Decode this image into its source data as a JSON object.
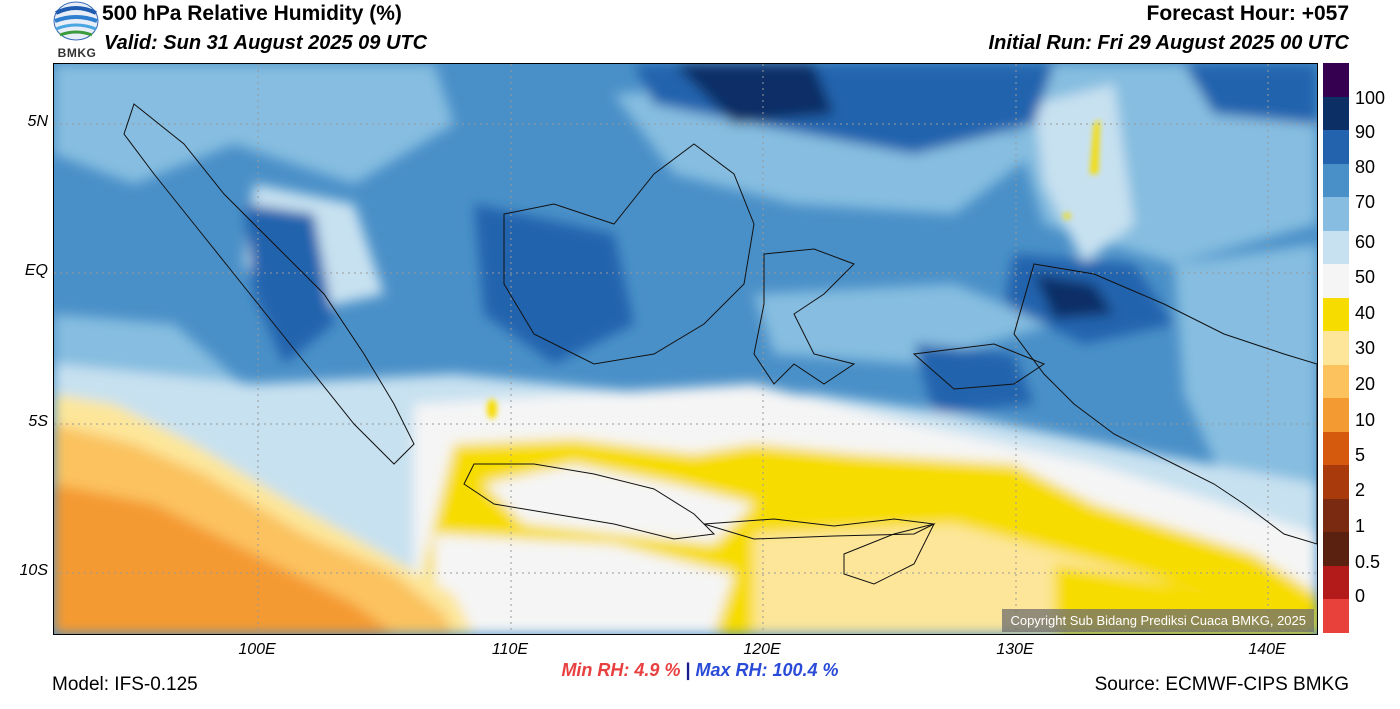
{
  "header": {
    "title": "500 hPa Relative Humidity (%)",
    "valid": "Valid: Sun 31 August 2025 09 UTC",
    "forecast_hour": "Forecast Hour: +057",
    "initial_run": "Initial Run: Fri 29 August 2025 00 UTC",
    "logo_text": "BMKG"
  },
  "map": {
    "copyright": "Copyright Sub Bidang Prediksi Cuaca BMKG, 2025",
    "lon_labels": [
      "100E",
      "110E",
      "120E",
      "130E",
      "140E"
    ],
    "lat_labels": [
      "5N",
      "EQ",
      "5S",
      "10S"
    ],
    "lon_values": [
      100,
      110,
      120,
      130,
      140
    ],
    "lat_values": [
      5,
      0,
      -5,
      -10
    ],
    "lon_range": [
      92,
      142
    ],
    "lat_range": [
      -12,
      7
    ]
  },
  "colorbar": {
    "labels": [
      "100",
      "90",
      "80",
      "70",
      "60",
      "50",
      "40",
      "30",
      "20",
      "10",
      "5",
      "2",
      "1",
      "0.5",
      "0"
    ],
    "colors": [
      "#35004f",
      "#0c2f66",
      "#2363ae",
      "#4a90c8",
      "#86bde0",
      "#c7e1f0",
      "#f5f5f5",
      "#f7dc00",
      "#fde69a",
      "#fbc25e",
      "#f49a32",
      "#d65a0d",
      "#a83a0c",
      "#7a2a10",
      "#5b2110",
      "#b31a1a",
      "#e8403a"
    ]
  },
  "footer": {
    "model": "Model: IFS-0.125",
    "source": "Source: ECMWF-CIPS BMKG",
    "min_rh": "Min RH:   4.9 %",
    "separator": " | ",
    "max_rh": "Max RH: 100.4 %"
  }
}
